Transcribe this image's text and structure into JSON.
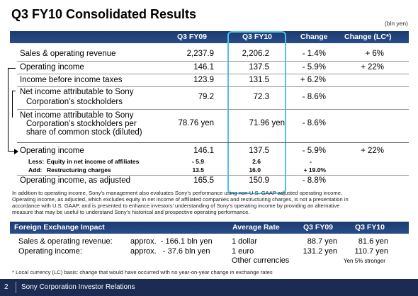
{
  "title": "Q3 FY10 Consolidated Results",
  "unit": "(bln yen)",
  "columns": [
    "Q3 FY09",
    "Q3 FY10",
    "Change",
    "Change (LC*)"
  ],
  "rows": {
    "sales": {
      "label": "Sales & operating revenue",
      "fy09": "2,237.9",
      "fy10": "2,206.2",
      "change": "- 1.4%",
      "lc": "+ 6%"
    },
    "opinc": {
      "label": "Operating income",
      "fy09": "146.1",
      "fy10": "137.5",
      "change": "- 5.9%",
      "lc": "+ 22%"
    },
    "pretax": {
      "label": "Income before income taxes",
      "fy09": "123.9",
      "fy10": "131.5",
      "change": "+ 6.2%"
    },
    "netinc": {
      "label1": "Net income attributable to Sony",
      "label2": "Corporation’s stockholders",
      "fy09": "79.2",
      "fy10": "72.3",
      "change": "- 8.6%"
    },
    "eps": {
      "label1": "Net income attributable to Sony",
      "label2": "Corporation’s stockholders per",
      "label3": "share of common stock (diluted)",
      "fy09": "78.76 yen",
      "fy10": "71.96 yen",
      "change": "- 8.6%"
    },
    "opinc2": {
      "label": "Operating income",
      "fy09": "146.1",
      "fy10": "137.5",
      "change": "- 5.9%",
      "lc": "+ 22%"
    },
    "less": {
      "prefix": "Less:",
      "label": "Equity in net income of affiliates",
      "fy09": "- 5.9",
      "fy10": "2.6",
      "change": "-"
    },
    "add": {
      "prefix": "Add:",
      "label": "Restructuring charges",
      "fy09": "13.5",
      "fy10": "16.0",
      "change": "+ 19.0%"
    },
    "adjusted": {
      "label": "Operating income, as adjusted",
      "fy09": "165.5",
      "fy10": "150.9",
      "change": "- 8.8%"
    }
  },
  "note": {
    "line1": "In addition to operating income, Sony’s management also evaluates Sony’s performance using non-U.S. GAAP adjusted operating income.",
    "line2": "Operating income, as adjusted, which excludes equity in net income of affiliated companies and restructuring charges, is not a presentation in",
    "line3": "accordance with U.S. GAAP, and is presented to enhance investors’ understanding of Sony’s operating income by providing an alternative",
    "line4": "measure that may be useful to understand Sony’s historical and prospective operating performance."
  },
  "fx": {
    "header": "Foreign Exchange Impact",
    "col_rate": "Average Rate",
    "col_fy09": "Q3 FY09",
    "col_fy10": "Q3 FY10",
    "sales_label": "Sales & operating revenue:",
    "sales_value": "approx.  - 166.1 bln yen",
    "opinc_label": "Operating income:",
    "opinc_value": "approx.   - 37.6 bln yen",
    "dollar": "1 dollar",
    "dollar_fy09": "88.7 yen",
    "dollar_fy10": "81.6 yen",
    "euro": "1 euro",
    "euro_fy09": "131.2 yen",
    "euro_fy10": "110.7 yen",
    "other": "Other currencies",
    "other_note": "Yen 5% stronger"
  },
  "footnote": "* Local currency (LC) basis: change that would have occurred with no year-on-year change in exchange rates",
  "footer": {
    "page": "2",
    "text": "Sony Corporation Investor Relations"
  },
  "colors": {
    "header_bg": "#1c3a6e",
    "highlight_border": "#4fc3e8",
    "footer_bg": "#1c2b52"
  }
}
